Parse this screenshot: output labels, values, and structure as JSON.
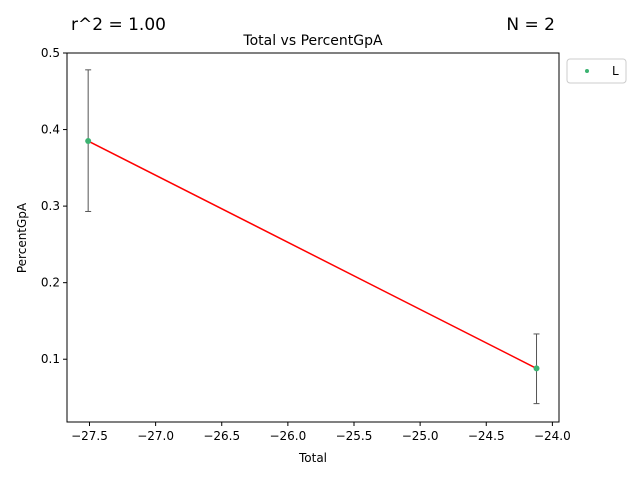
{
  "chart_data": {
    "type": "scatter",
    "title": "Total vs PercentGpA",
    "xlabel": "Total",
    "ylabel": "PercentGpA",
    "xlim": [
      -27.67,
      -23.95
    ],
    "ylim": [
      0.018,
      0.5
    ],
    "xticks": [
      -27.5,
      -27.0,
      -26.5,
      -26.0,
      -25.5,
      -25.0,
      -24.5,
      -24.0
    ],
    "xtick_labels": [
      "−27.5",
      "−27.0",
      "−26.5",
      "−26.0",
      "−25.5",
      "−25.0",
      "−24.5",
      "−24.0"
    ],
    "yticks": [
      0.1,
      0.2,
      0.3,
      0.4,
      0.5
    ],
    "ytick_labels": [
      "0.1",
      "0.2",
      "0.3",
      "0.4",
      "0.5"
    ],
    "grid": false,
    "series": [
      {
        "name": "L",
        "color": "#3cb371",
        "points": [
          {
            "x": -27.51,
            "y": 0.385,
            "err_low": 0.293,
            "err_high": 0.478
          },
          {
            "x": -24.12,
            "y": 0.088,
            "err_low": 0.042,
            "err_high": 0.133
          }
        ]
      }
    ],
    "fit_line": {
      "color": "#ff0000",
      "x": [
        -27.51,
        -24.12
      ],
      "y": [
        0.385,
        0.088
      ]
    },
    "errorbar_color": "#555555",
    "legend": {
      "position": "outside-top-right",
      "entries": [
        "L"
      ]
    },
    "annotations": {
      "r_squared": "r^2 = 1.00",
      "n": "N = 2"
    }
  }
}
